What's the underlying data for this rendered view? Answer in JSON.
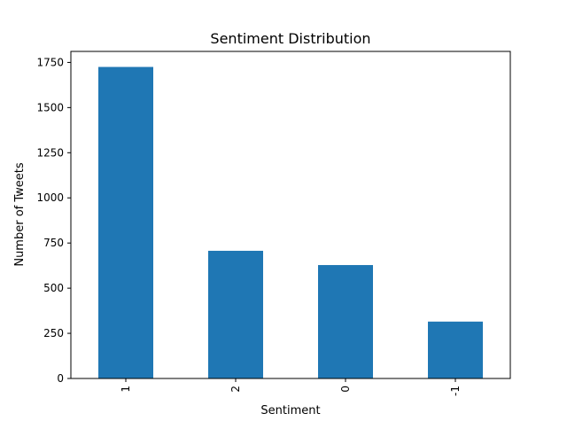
{
  "chart_data": {
    "type": "bar",
    "title": "Sentiment Distribution",
    "xlabel": "Sentiment",
    "ylabel": "Number of Tweets",
    "categories": [
      "1",
      "2",
      "0",
      "-1"
    ],
    "values": [
      1725,
      707,
      628,
      315
    ],
    "ylim": [
      0,
      1811
    ],
    "yticks": [
      0,
      250,
      500,
      750,
      1000,
      1250,
      1500,
      1750
    ],
    "bar_color": "#1f77b4",
    "grid": false,
    "legend": false,
    "xtick_rotation": "vertical"
  }
}
